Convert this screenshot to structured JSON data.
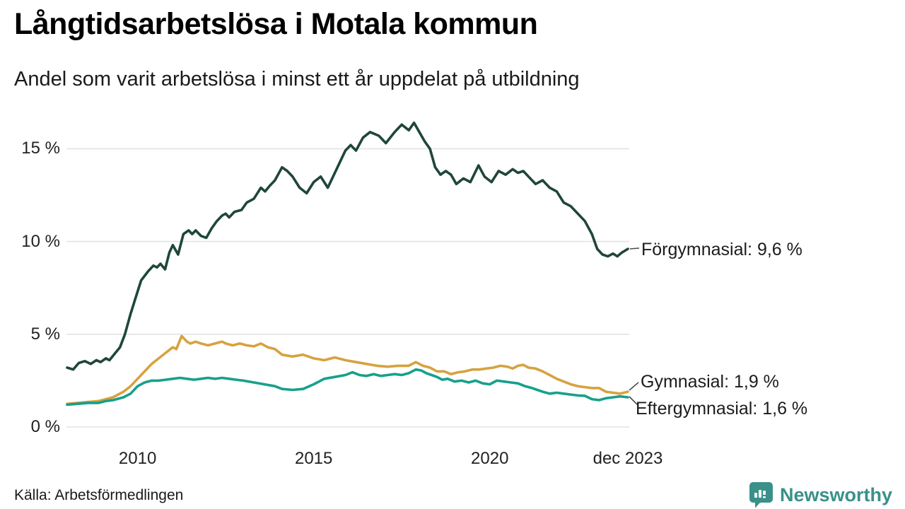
{
  "header": {
    "title": "Långtidsarbetslösa i Motala kommun",
    "subtitle": "Andel som varit arbetslösa i minst ett år uppdelat på utbildning"
  },
  "footer": {
    "source": "Källa: Arbetsförmedlingen",
    "brand": "Newsworthy"
  },
  "colors": {
    "forgymnasial": "#1f463c",
    "gymnasial": "#d6a240",
    "eftergymnasial": "#17a08a",
    "grid": "#e3e3e3",
    "connector": "#4a4a4a",
    "brand": "#39918a"
  },
  "chart_data": {
    "type": "line",
    "title": "Långtidsarbetslösa i Motala kommun",
    "subtitle": "Andel som varit arbetslösa i minst ett år uppdelat på utbildning",
    "unit": "%",
    "x_range": [
      2008,
      2023.92
    ],
    "ylim": [
      0,
      16.5
    ],
    "grid": true,
    "legend_position": "end-of-line-labels",
    "y_ticks": [
      {
        "value": 0,
        "label": "0 %"
      },
      {
        "value": 5,
        "label": "5 %"
      },
      {
        "value": 10,
        "label": "10 %"
      },
      {
        "value": 15,
        "label": "15 %"
      }
    ],
    "x_ticks": [
      {
        "value": 2010,
        "label": "2010"
      },
      {
        "value": 2015,
        "label": "2015"
      },
      {
        "value": 2020,
        "label": "2020"
      },
      {
        "value": 2023.92,
        "label": "dec 2023"
      }
    ],
    "series": [
      {
        "name": "Förgymnasial",
        "color_key": "forgymnasial",
        "end_value_label": "9,6 %",
        "end_label": "Förgymnasial: 9,6 %",
        "points": [
          [
            2008.0,
            3.2
          ],
          [
            2008.17,
            3.1
          ],
          [
            2008.33,
            3.45
          ],
          [
            2008.5,
            3.55
          ],
          [
            2008.67,
            3.4
          ],
          [
            2008.83,
            3.6
          ],
          [
            2008.95,
            3.5
          ],
          [
            2009.1,
            3.7
          ],
          [
            2009.2,
            3.6
          ],
          [
            2009.35,
            3.95
          ],
          [
            2009.5,
            4.3
          ],
          [
            2009.64,
            5.0
          ],
          [
            2009.8,
            6.1
          ],
          [
            2009.95,
            7.0
          ],
          [
            2010.1,
            7.9
          ],
          [
            2010.3,
            8.4
          ],
          [
            2010.45,
            8.7
          ],
          [
            2010.55,
            8.6
          ],
          [
            2010.65,
            8.8
          ],
          [
            2010.78,
            8.5
          ],
          [
            2010.9,
            9.4
          ],
          [
            2011.0,
            9.8
          ],
          [
            2011.15,
            9.3
          ],
          [
            2011.3,
            10.4
          ],
          [
            2011.45,
            10.6
          ],
          [
            2011.55,
            10.4
          ],
          [
            2011.65,
            10.6
          ],
          [
            2011.8,
            10.3
          ],
          [
            2011.95,
            10.2
          ],
          [
            2012.1,
            10.7
          ],
          [
            2012.25,
            11.1
          ],
          [
            2012.4,
            11.4
          ],
          [
            2012.5,
            11.5
          ],
          [
            2012.6,
            11.3
          ],
          [
            2012.75,
            11.6
          ],
          [
            2012.95,
            11.7
          ],
          [
            2013.1,
            12.1
          ],
          [
            2013.3,
            12.3
          ],
          [
            2013.5,
            12.9
          ],
          [
            2013.62,
            12.7
          ],
          [
            2013.75,
            13.0
          ],
          [
            2013.9,
            13.3
          ],
          [
            2014.1,
            14.0
          ],
          [
            2014.25,
            13.8
          ],
          [
            2014.4,
            13.5
          ],
          [
            2014.6,
            12.9
          ],
          [
            2014.8,
            12.6
          ],
          [
            2015.0,
            13.2
          ],
          [
            2015.2,
            13.5
          ],
          [
            2015.4,
            12.9
          ],
          [
            2015.6,
            13.7
          ],
          [
            2015.75,
            14.3
          ],
          [
            2015.9,
            14.9
          ],
          [
            2016.05,
            15.2
          ],
          [
            2016.2,
            14.9
          ],
          [
            2016.4,
            15.6
          ],
          [
            2016.6,
            15.9
          ],
          [
            2016.85,
            15.7
          ],
          [
            2017.05,
            15.3
          ],
          [
            2017.3,
            15.9
          ],
          [
            2017.5,
            16.3
          ],
          [
            2017.7,
            16.0
          ],
          [
            2017.85,
            16.4
          ],
          [
            2018.0,
            15.9
          ],
          [
            2018.15,
            15.4
          ],
          [
            2018.3,
            15.0
          ],
          [
            2018.45,
            14.0
          ],
          [
            2018.6,
            13.6
          ],
          [
            2018.75,
            13.8
          ],
          [
            2018.9,
            13.6
          ],
          [
            2019.05,
            13.1
          ],
          [
            2019.25,
            13.4
          ],
          [
            2019.45,
            13.2
          ],
          [
            2019.68,
            14.1
          ],
          [
            2019.85,
            13.5
          ],
          [
            2020.05,
            13.2
          ],
          [
            2020.25,
            13.8
          ],
          [
            2020.45,
            13.6
          ],
          [
            2020.65,
            13.9
          ],
          [
            2020.8,
            13.7
          ],
          [
            2020.95,
            13.8
          ],
          [
            2021.1,
            13.5
          ],
          [
            2021.3,
            13.1
          ],
          [
            2021.5,
            13.3
          ],
          [
            2021.7,
            12.9
          ],
          [
            2021.9,
            12.7
          ],
          [
            2022.1,
            12.1
          ],
          [
            2022.3,
            11.9
          ],
          [
            2022.5,
            11.5
          ],
          [
            2022.7,
            11.1
          ],
          [
            2022.9,
            10.4
          ],
          [
            2023.05,
            9.6
          ],
          [
            2023.2,
            9.3
          ],
          [
            2023.35,
            9.2
          ],
          [
            2023.5,
            9.35
          ],
          [
            2023.62,
            9.2
          ],
          [
            2023.75,
            9.4
          ],
          [
            2023.92,
            9.6
          ]
        ]
      },
      {
        "name": "Gymnasial",
        "color_key": "gymnasial",
        "end_value_label": "1,9 %",
        "end_label": "Gymnasial: 1,9 %",
        "points": [
          [
            2008.0,
            1.25
          ],
          [
            2008.3,
            1.3
          ],
          [
            2008.6,
            1.35
          ],
          [
            2008.9,
            1.4
          ],
          [
            2009.1,
            1.5
          ],
          [
            2009.3,
            1.6
          ],
          [
            2009.6,
            1.9
          ],
          [
            2009.8,
            2.2
          ],
          [
            2010.0,
            2.6
          ],
          [
            2010.2,
            3.0
          ],
          [
            2010.4,
            3.4
          ],
          [
            2010.6,
            3.7
          ],
          [
            2010.8,
            4.0
          ],
          [
            2011.0,
            4.3
          ],
          [
            2011.1,
            4.2
          ],
          [
            2011.25,
            4.9
          ],
          [
            2011.4,
            4.6
          ],
          [
            2011.5,
            4.5
          ],
          [
            2011.65,
            4.6
          ],
          [
            2011.8,
            4.5
          ],
          [
            2012.0,
            4.4
          ],
          [
            2012.2,
            4.5
          ],
          [
            2012.4,
            4.6
          ],
          [
            2012.5,
            4.5
          ],
          [
            2012.7,
            4.4
          ],
          [
            2012.9,
            4.5
          ],
          [
            2013.1,
            4.4
          ],
          [
            2013.3,
            4.35
          ],
          [
            2013.5,
            4.5
          ],
          [
            2013.7,
            4.3
          ],
          [
            2013.9,
            4.2
          ],
          [
            2014.1,
            3.9
          ],
          [
            2014.4,
            3.8
          ],
          [
            2014.7,
            3.9
          ],
          [
            2015.0,
            3.7
          ],
          [
            2015.3,
            3.6
          ],
          [
            2015.6,
            3.75
          ],
          [
            2015.9,
            3.6
          ],
          [
            2016.2,
            3.5
          ],
          [
            2016.5,
            3.4
          ],
          [
            2016.8,
            3.3
          ],
          [
            2017.1,
            3.25
          ],
          [
            2017.4,
            3.3
          ],
          [
            2017.7,
            3.3
          ],
          [
            2017.9,
            3.5
          ],
          [
            2018.1,
            3.3
          ],
          [
            2018.3,
            3.2
          ],
          [
            2018.5,
            3.0
          ],
          [
            2018.7,
            3.0
          ],
          [
            2018.9,
            2.85
          ],
          [
            2019.1,
            2.95
          ],
          [
            2019.3,
            3.0
          ],
          [
            2019.5,
            3.1
          ],
          [
            2019.7,
            3.1
          ],
          [
            2019.9,
            3.15
          ],
          [
            2020.1,
            3.2
          ],
          [
            2020.3,
            3.3
          ],
          [
            2020.5,
            3.25
          ],
          [
            2020.65,
            3.15
          ],
          [
            2020.8,
            3.3
          ],
          [
            2020.95,
            3.35
          ],
          [
            2021.1,
            3.2
          ],
          [
            2021.3,
            3.15
          ],
          [
            2021.5,
            3.0
          ],
          [
            2021.7,
            2.8
          ],
          [
            2021.9,
            2.6
          ],
          [
            2022.1,
            2.45
          ],
          [
            2022.3,
            2.3
          ],
          [
            2022.5,
            2.2
          ],
          [
            2022.7,
            2.15
          ],
          [
            2022.9,
            2.1
          ],
          [
            2023.1,
            2.1
          ],
          [
            2023.3,
            1.9
          ],
          [
            2023.5,
            1.85
          ],
          [
            2023.7,
            1.8
          ],
          [
            2023.92,
            1.9
          ]
        ]
      },
      {
        "name": "Eftergymnasial",
        "color_key": "eftergymnasial",
        "end_value_label": "1,6 %",
        "end_label": "Eftergymnasial: 1,6 %",
        "points": [
          [
            2008.0,
            1.2
          ],
          [
            2008.3,
            1.25
          ],
          [
            2008.6,
            1.3
          ],
          [
            2008.9,
            1.3
          ],
          [
            2009.1,
            1.4
          ],
          [
            2009.3,
            1.45
          ],
          [
            2009.6,
            1.6
          ],
          [
            2009.8,
            1.8
          ],
          [
            2010.0,
            2.2
          ],
          [
            2010.2,
            2.4
          ],
          [
            2010.4,
            2.5
          ],
          [
            2010.6,
            2.5
          ],
          [
            2010.8,
            2.55
          ],
          [
            2011.0,
            2.6
          ],
          [
            2011.2,
            2.65
          ],
          [
            2011.4,
            2.6
          ],
          [
            2011.6,
            2.55
          ],
          [
            2011.8,
            2.6
          ],
          [
            2012.0,
            2.65
          ],
          [
            2012.2,
            2.6
          ],
          [
            2012.4,
            2.65
          ],
          [
            2012.6,
            2.6
          ],
          [
            2012.8,
            2.55
          ],
          [
            2013.0,
            2.5
          ],
          [
            2013.3,
            2.4
          ],
          [
            2013.6,
            2.3
          ],
          [
            2013.9,
            2.2
          ],
          [
            2014.1,
            2.05
          ],
          [
            2014.4,
            2.0
          ],
          [
            2014.7,
            2.05
          ],
          [
            2015.0,
            2.3
          ],
          [
            2015.3,
            2.6
          ],
          [
            2015.6,
            2.7
          ],
          [
            2015.9,
            2.8
          ],
          [
            2016.1,
            2.95
          ],
          [
            2016.3,
            2.8
          ],
          [
            2016.5,
            2.75
          ],
          [
            2016.7,
            2.85
          ],
          [
            2016.9,
            2.75
          ],
          [
            2017.1,
            2.8
          ],
          [
            2017.3,
            2.85
          ],
          [
            2017.5,
            2.8
          ],
          [
            2017.7,
            2.9
          ],
          [
            2017.9,
            3.1
          ],
          [
            2018.05,
            3.05
          ],
          [
            2018.2,
            2.9
          ],
          [
            2018.35,
            2.8
          ],
          [
            2018.5,
            2.7
          ],
          [
            2018.65,
            2.55
          ],
          [
            2018.8,
            2.6
          ],
          [
            2019.0,
            2.45
          ],
          [
            2019.2,
            2.5
          ],
          [
            2019.4,
            2.4
          ],
          [
            2019.6,
            2.5
          ],
          [
            2019.8,
            2.35
          ],
          [
            2020.0,
            2.3
          ],
          [
            2020.2,
            2.5
          ],
          [
            2020.4,
            2.45
          ],
          [
            2020.6,
            2.4
          ],
          [
            2020.8,
            2.35
          ],
          [
            2021.0,
            2.2
          ],
          [
            2021.2,
            2.1
          ],
          [
            2021.5,
            1.9
          ],
          [
            2021.7,
            1.8
          ],
          [
            2021.9,
            1.85
          ],
          [
            2022.1,
            1.8
          ],
          [
            2022.3,
            1.75
          ],
          [
            2022.5,
            1.7
          ],
          [
            2022.7,
            1.68
          ],
          [
            2022.9,
            1.5
          ],
          [
            2023.1,
            1.45
          ],
          [
            2023.3,
            1.55
          ],
          [
            2023.5,
            1.6
          ],
          [
            2023.7,
            1.65
          ],
          [
            2023.92,
            1.6
          ]
        ]
      }
    ]
  }
}
